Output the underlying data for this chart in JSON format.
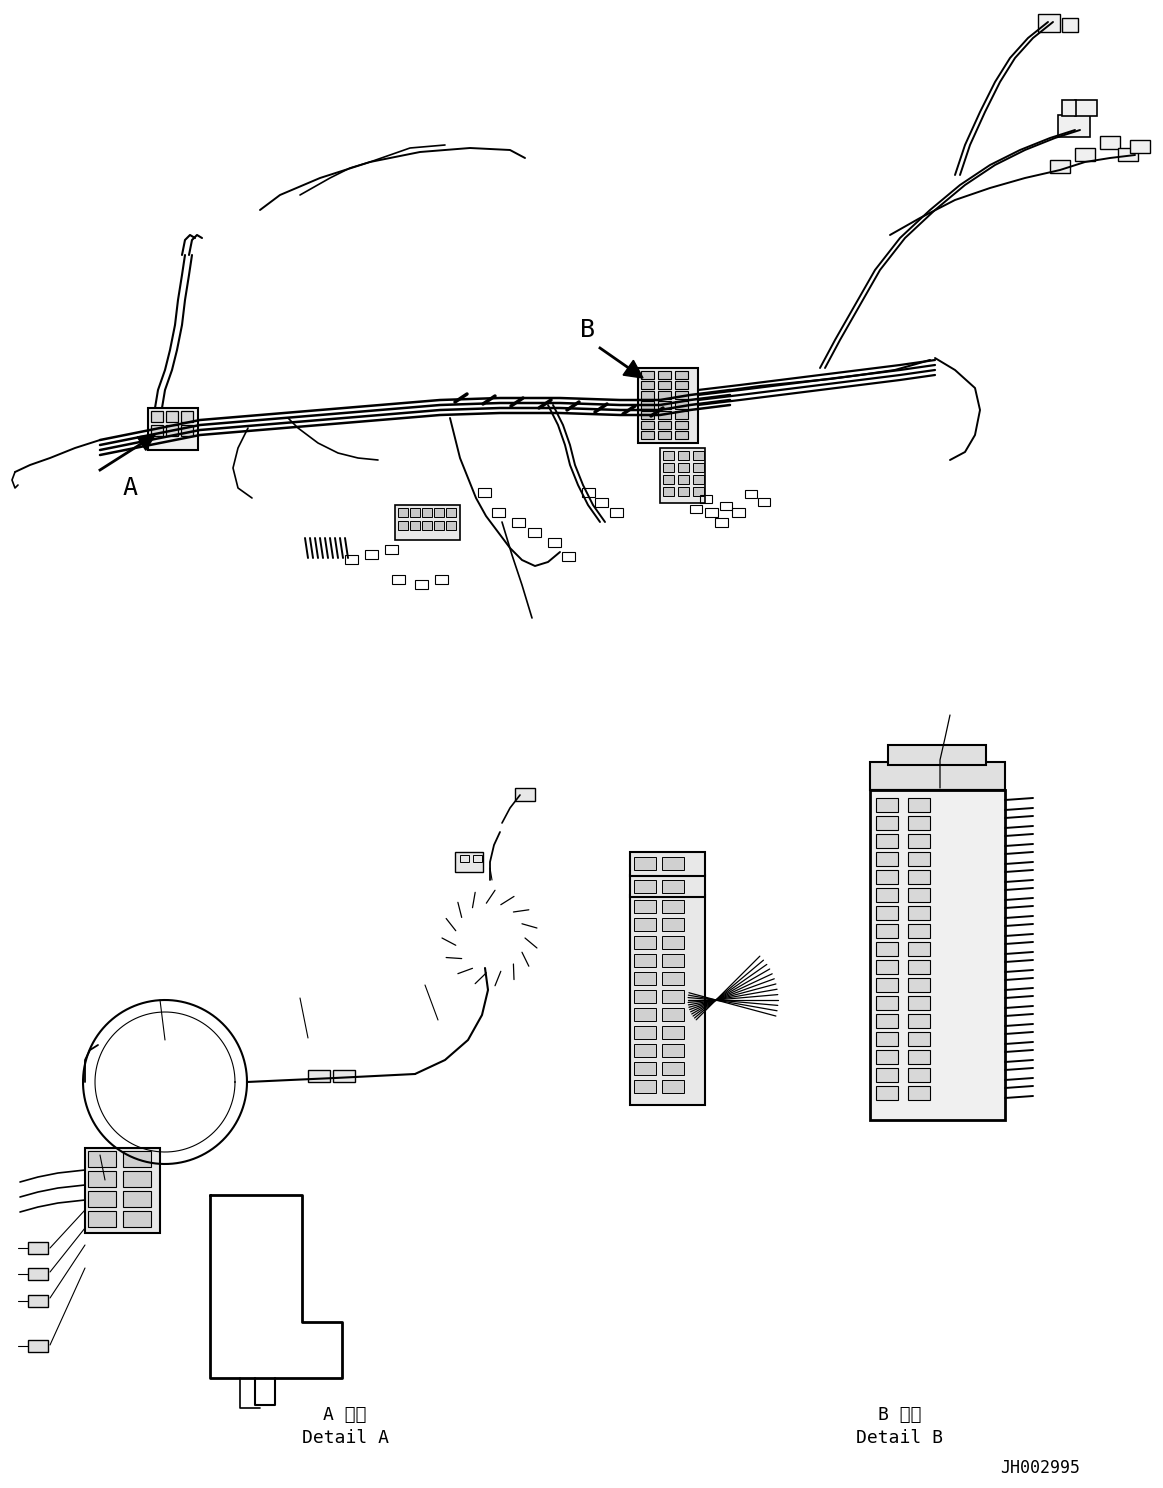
{
  "bg_color": "#ffffff",
  "line_color": "#000000",
  "line_width": 1.2,
  "fig_width": 11.63,
  "fig_height": 14.88,
  "dpi": 100,
  "label_A": "A",
  "label_B": "B",
  "detail_A_jp": "A 詳細",
  "detail_A_en": "Detail A",
  "detail_B_jp": "B 詳細",
  "detail_B_en": "Detail B",
  "part_number": "JH002995",
  "font_family": "monospace",
  "font_size_label": 18,
  "font_size_detail": 13,
  "font_size_partnum": 12
}
